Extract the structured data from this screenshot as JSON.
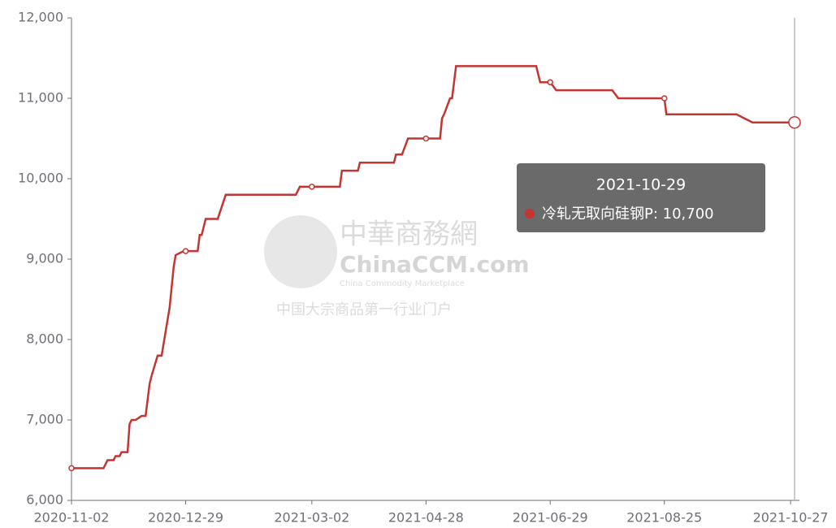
{
  "chart_data": {
    "type": "line",
    "x": [
      "2020-11-02",
      "2020-11-18",
      "2020-11-20",
      "2020-11-23",
      "2020-11-24",
      "2020-11-26",
      "2020-11-27",
      "2020-11-30",
      "2020-12-01",
      "2020-12-02",
      "2020-12-04",
      "2020-12-07",
      "2020-12-09",
      "2020-12-11",
      "2020-12-12",
      "2020-12-15",
      "2020-12-17",
      "2020-12-21",
      "2020-12-23",
      "2020-12-24",
      "2020-12-28",
      "2020-12-29",
      "2021-01-04",
      "2021-01-05",
      "2021-01-06",
      "2021-01-08",
      "2021-01-14",
      "2021-01-18",
      "2021-02-22",
      "2021-02-24",
      "2021-03-02",
      "2021-03-16",
      "2021-03-17",
      "2021-03-25",
      "2021-03-26",
      "2021-04-12",
      "2021-04-13",
      "2021-04-16",
      "2021-04-19",
      "2021-04-28",
      "2021-05-05",
      "2021-05-06",
      "2021-05-07",
      "2021-05-10",
      "2021-05-11",
      "2021-05-13",
      "2021-06-22",
      "2021-06-24",
      "2021-06-29",
      "2021-07-02",
      "2021-07-30",
      "2021-08-02",
      "2021-08-25",
      "2021-08-26",
      "2021-09-30",
      "2021-10-08",
      "2021-10-29"
    ],
    "series": [
      {
        "name": "冷轧无取向硅钢P",
        "color": "#c23531",
        "values": [
          6400,
          6400,
          6500,
          6500,
          6550,
          6550,
          6600,
          6600,
          6950,
          7000,
          7000,
          7050,
          7050,
          7450,
          7550,
          7800,
          7800,
          8400,
          8900,
          9050,
          9100,
          9100,
          9100,
          9300,
          9300,
          9500,
          9500,
          9800,
          9800,
          9900,
          9900,
          9900,
          10100,
          10100,
          10200,
          10200,
          10300,
          10300,
          10500,
          10500,
          10500,
          10750,
          10800,
          11000,
          11000,
          11400,
          11400,
          11200,
          11200,
          11100,
          11100,
          11000,
          11000,
          10800,
          10800,
          10700,
          10700
        ]
      }
    ],
    "xlim": [
      "2020-11-02",
      "2021-10-29"
    ],
    "xticks": [
      "2020-11-02",
      "2020-12-29",
      "2021-03-02",
      "2021-04-28",
      "2021-06-29",
      "2021-08-25",
      "2021-10-27"
    ],
    "ylim": [
      6000,
      12000
    ],
    "yticks": [
      {
        "value": 6000,
        "label": "6,000"
      },
      {
        "value": 7000,
        "label": "7,000"
      },
      {
        "value": 8000,
        "label": "8,000"
      },
      {
        "value": 9000,
        "label": "9,000"
      },
      {
        "value": 10000,
        "label": "10,000"
      },
      {
        "value": 11000,
        "label": "11,000"
      },
      {
        "value": 12000,
        "label": "12,000"
      }
    ],
    "grid": false,
    "tooltip": {
      "title": "2021-10-29",
      "text": "冷轧无取向硅钢P: 10,700"
    },
    "watermark": {
      "brand": "中華商務網",
      "site": "ChinaCCM.com",
      "tagline": "China Commodity Marketplace",
      "slogan": "中国大宗商品第一行业门户"
    }
  }
}
